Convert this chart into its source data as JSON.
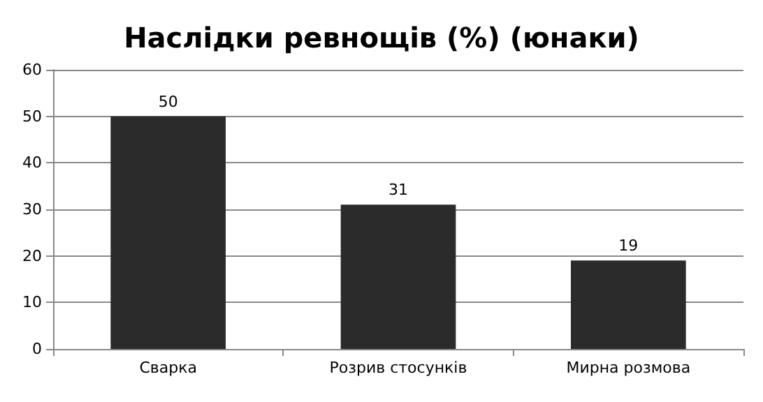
{
  "chart_data": {
    "type": "bar",
    "title": "Наслідки ревнощів (%) (юнаки)",
    "categories": [
      "Сварка",
      "Розрив стосунків",
      "Мирна розмова"
    ],
    "values": [
      50,
      31,
      19
    ],
    "color": "#2b2b2b",
    "ylim": [
      0,
      60
    ],
    "yticks": [
      0,
      10,
      20,
      30,
      40,
      50,
      60
    ],
    "grid": "y",
    "data_labels": true
  }
}
